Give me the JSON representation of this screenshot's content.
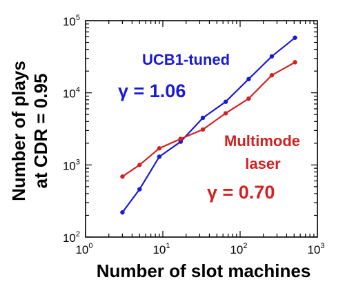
{
  "chart_data": {
    "type": "line",
    "xlabel": "Number of slot machines",
    "ylabel": [
      "Number of plays",
      "at CDR = 0.95"
    ],
    "xscale": "log",
    "yscale": "log",
    "xlim": [
      1,
      1000
    ],
    "ylim": [
      100,
      100000
    ],
    "xticks": [
      {
        "base": "10",
        "exp": "0",
        "value": 1
      },
      {
        "base": "10",
        "exp": "1",
        "value": 10
      },
      {
        "base": "10",
        "exp": "2",
        "value": 100
      },
      {
        "base": "10",
        "exp": "3",
        "value": 1000
      }
    ],
    "yticks": [
      {
        "base": "10",
        "exp": "2",
        "value": 100
      },
      {
        "base": "10",
        "exp": "3",
        "value": 1000
      },
      {
        "base": "10",
        "exp": "4",
        "value": 10000
      },
      {
        "base": "10",
        "exp": "5",
        "value": 100000
      }
    ],
    "grid": false,
    "series": [
      {
        "name": "UCB1-tuned",
        "color": "#1a1ad6",
        "x": [
          3,
          5,
          9,
          17,
          33,
          65,
          129,
          257,
          513
        ],
        "y": [
          220,
          460,
          1300,
          2100,
          4500,
          7500,
          15500,
          32000,
          58000
        ]
      },
      {
        "name": "Multimode laser",
        "color": "#d42020",
        "x": [
          3,
          5,
          9,
          17,
          33,
          65,
          129,
          257,
          513
        ],
        "y": [
          690,
          1000,
          1700,
          2300,
          3100,
          5200,
          8300,
          17500,
          26500
        ]
      }
    ],
    "annotations": {
      "ucb_label": "UCB1-tuned",
      "ucb_gamma": "γ = 1.06",
      "laser_label_1": "Multimode",
      "laser_label_2": "laser",
      "laser_gamma": "γ = 0.70"
    }
  }
}
